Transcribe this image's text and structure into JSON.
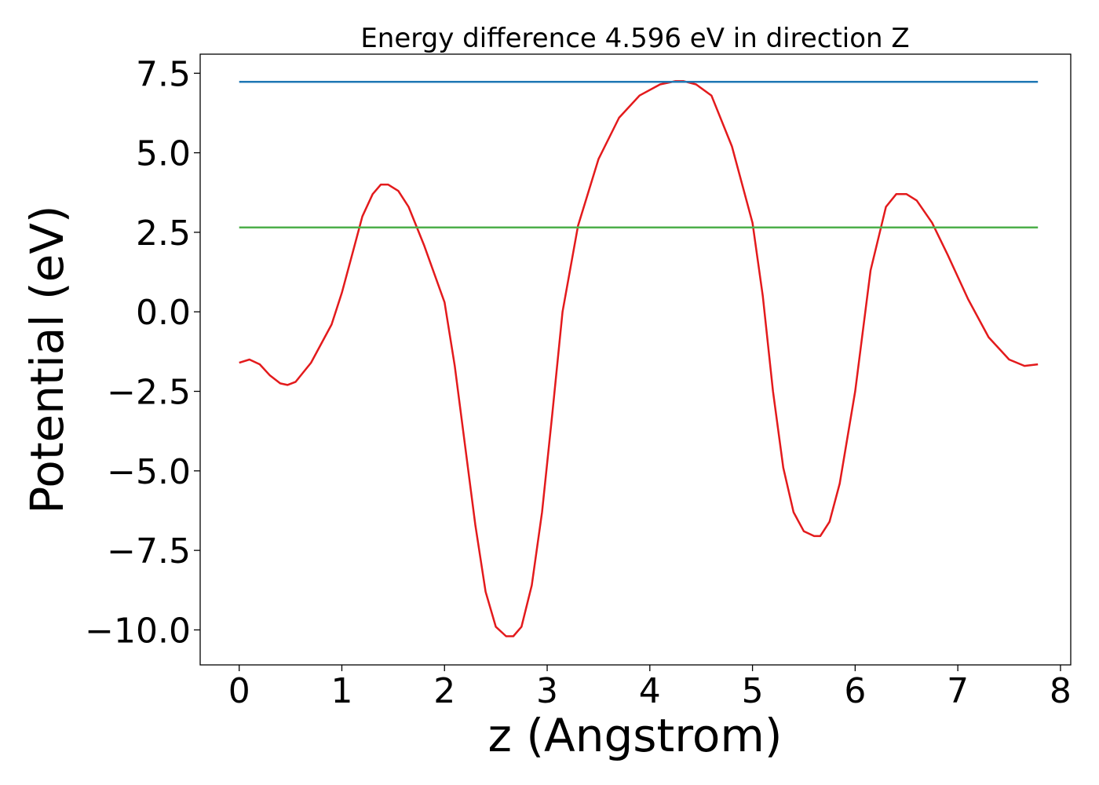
{
  "chart_data": {
    "type": "line",
    "title": "Energy difference 4.596 eV in direction Z",
    "xlabel": "z (Angstrom)",
    "ylabel": "Potential (eV)",
    "xlim": [
      -0.38,
      8.1
    ],
    "ylim": [
      -11.1,
      8.1
    ],
    "x_ticks": [
      0,
      1,
      2,
      3,
      4,
      5,
      6,
      7,
      8
    ],
    "x_tick_labels": [
      "0",
      "1",
      "2",
      "3",
      "4",
      "5",
      "6",
      "7",
      "8"
    ],
    "y_ticks": [
      7.5,
      5.0,
      2.5,
      0.0,
      -2.5,
      -5.0,
      -7.5,
      -10.0
    ],
    "y_tick_labels": [
      "7.5",
      "5.0",
      "2.5",
      "0.0",
      "−2.5",
      "−5.0",
      "−7.5",
      "−10.0"
    ],
    "grid": false,
    "series": [
      {
        "color": "#e31a1c",
        "x": [
          0.0,
          0.1,
          0.2,
          0.3,
          0.4,
          0.47,
          0.55,
          0.7,
          0.9,
          1.0,
          1.1,
          1.2,
          1.3,
          1.38,
          1.45,
          1.55,
          1.65,
          1.8,
          2.0,
          2.1,
          2.2,
          2.3,
          2.4,
          2.5,
          2.6,
          2.67,
          2.75,
          2.85,
          2.95,
          3.05,
          3.15,
          3.3,
          3.5,
          3.7,
          3.9,
          4.1,
          4.25,
          4.33,
          4.45,
          4.6,
          4.8,
          5.0,
          5.1,
          5.2,
          5.3,
          5.4,
          5.5,
          5.6,
          5.66,
          5.75,
          5.85,
          6.0,
          6.15,
          6.3,
          6.4,
          6.5,
          6.6,
          6.75,
          6.9,
          7.1,
          7.3,
          7.5,
          7.65,
          7.78
        ],
        "y": [
          -1.6,
          -1.5,
          -1.65,
          -2.0,
          -2.25,
          -2.3,
          -2.2,
          -1.6,
          -0.4,
          0.6,
          1.8,
          3.0,
          3.7,
          4.0,
          4.0,
          3.8,
          3.3,
          2.1,
          0.3,
          -1.7,
          -4.2,
          -6.7,
          -8.8,
          -9.9,
          -10.2,
          -10.2,
          -9.9,
          -8.6,
          -6.3,
          -3.2,
          0.0,
          2.7,
          4.8,
          6.1,
          6.8,
          7.15,
          7.25,
          7.25,
          7.15,
          6.8,
          5.2,
          2.8,
          0.5,
          -2.5,
          -4.9,
          -6.3,
          -6.9,
          -7.05,
          -7.05,
          -6.6,
          -5.4,
          -2.5,
          1.3,
          3.3,
          3.7,
          3.7,
          3.5,
          2.8,
          1.8,
          0.4,
          -0.8,
          -1.5,
          -1.7,
          -1.65
        ]
      },
      {
        "color": "#1f77b4",
        "x": [
          0.0,
          7.78
        ],
        "y": [
          7.23,
          7.23
        ]
      },
      {
        "color": "#4daf4a",
        "x": [
          0.0,
          7.78
        ],
        "y": [
          2.65,
          2.65
        ]
      }
    ]
  }
}
